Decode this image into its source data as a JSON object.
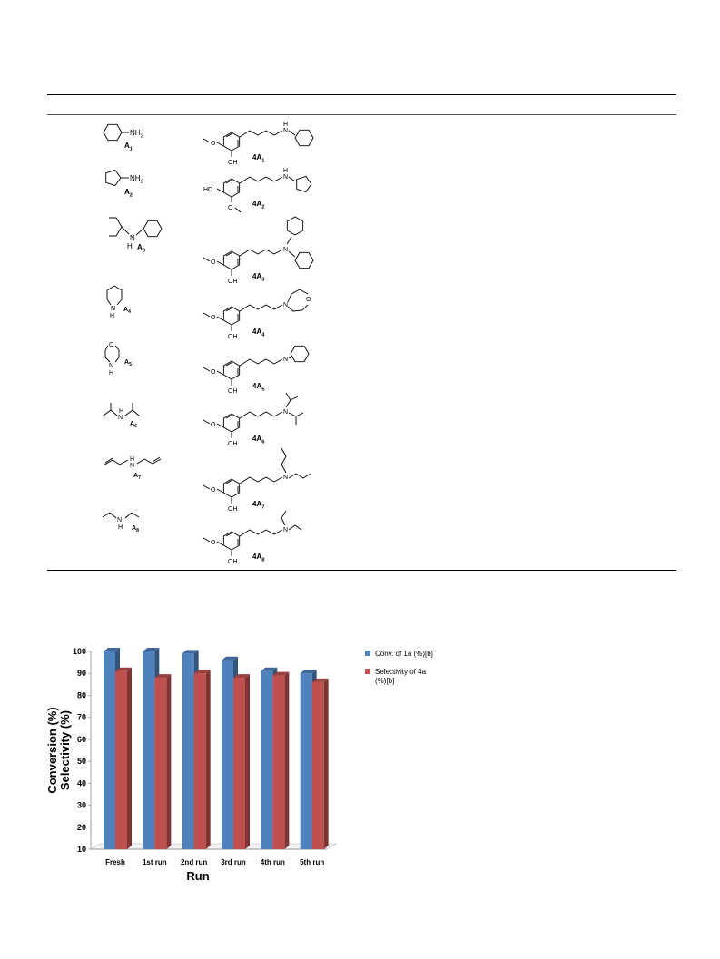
{
  "amines": [
    {
      "id": "A1",
      "label": "A",
      "sub": "1",
      "group": "NH",
      "group_sub": "2",
      "product": "4A",
      "product_sub": "1"
    },
    {
      "id": "A2",
      "label": "A",
      "sub": "2",
      "group": "NH",
      "group_sub": "2",
      "product": "4A",
      "product_sub": "2"
    },
    {
      "id": "A3",
      "label": "A",
      "sub": "3",
      "group": "N",
      "h": "H",
      "product": "4A",
      "product_sub": "3"
    },
    {
      "id": "A4",
      "label": "A",
      "sub": "4",
      "group": "N",
      "h": "H",
      "product": "4A",
      "product_sub": "4"
    },
    {
      "id": "A5",
      "label": "A",
      "sub": "5",
      "group": "N",
      "h": "H",
      "product": "4A",
      "product_sub": "5"
    },
    {
      "id": "A6",
      "label": "A",
      "sub": "6",
      "group": "N",
      "h": "H",
      "product": "4A",
      "product_sub": "6"
    },
    {
      "id": "A7",
      "label": "A",
      "sub": "7",
      "group": "N",
      "h": "H",
      "product": "4A",
      "product_sub": "7"
    },
    {
      "id": "A8",
      "label": "A",
      "sub": "8",
      "group": "N",
      "h": "H",
      "product": "4A",
      "product_sub": "8"
    }
  ],
  "atoms": {
    "oh": "OH",
    "ho": "HO",
    "n": "N",
    "h": "H",
    "o": "O"
  },
  "chart_data": {
    "type": "bar",
    "categories": [
      "Fresh",
      "1st run",
      "2nd run",
      "3rd run",
      "4th run",
      "5th run"
    ],
    "series": [
      {
        "name": "Conv. of 1a (%)[b]",
        "values": [
          100,
          100,
          99,
          96,
          91,
          90
        ],
        "color": "#4f81bd"
      },
      {
        "name": "Selectivity of 4a (%)[b]",
        "values": [
          91,
          88,
          90,
          88,
          89,
          86
        ],
        "color": "#c0504d"
      }
    ],
    "xlabel": "Run",
    "ylabel_line1": "Conversion (%)",
    "ylabel_line2": "Selectivity (%)",
    "ylim": [
      10,
      100
    ],
    "yticks": [
      10,
      20,
      30,
      40,
      50,
      60,
      70,
      80,
      90,
      100
    ],
    "legend": "right",
    "legend_line1": [
      "Conv. of 1a (%)[b]",
      "Selectivity of 4a"
    ],
    "legend_line2": [
      "",
      "(%)[b]"
    ]
  }
}
